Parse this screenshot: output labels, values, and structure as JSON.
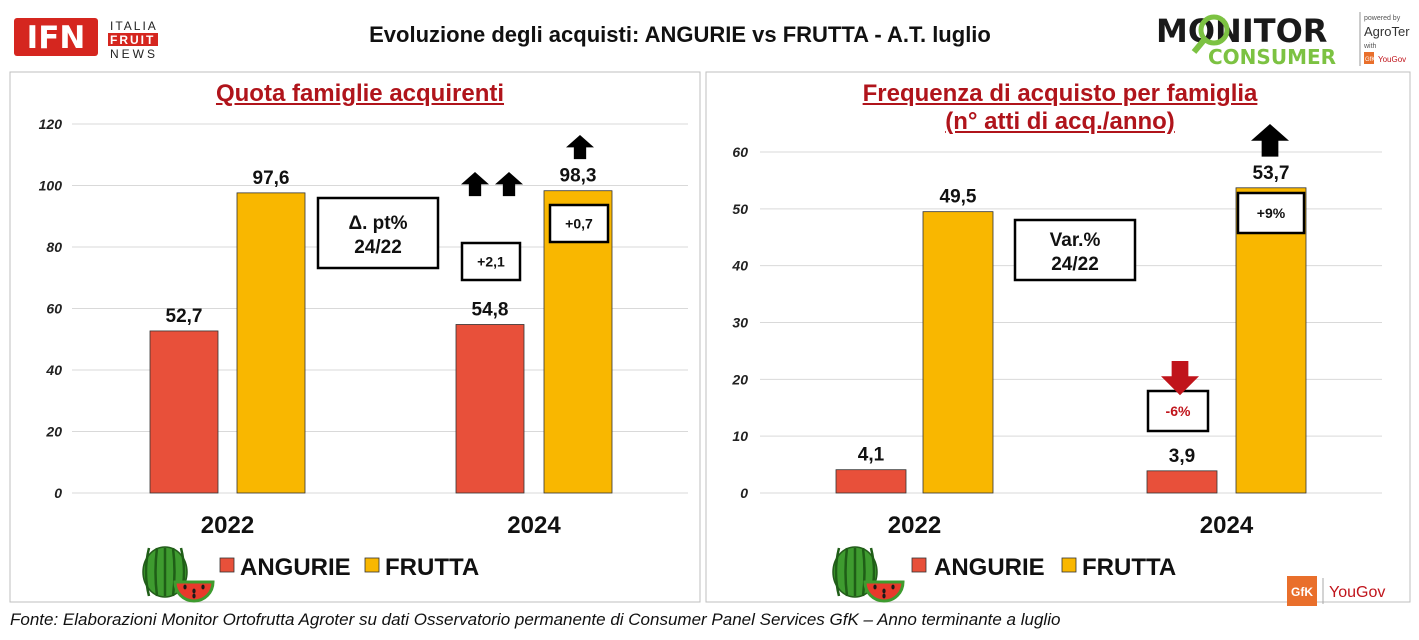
{
  "header": {
    "title": "Evoluzione degli acquisti: ANGURIE vs FRUTTA  - A.T. luglio",
    "logo_left": {
      "main": "IFN",
      "lines": [
        "ITALIA",
        "FRUIT",
        "NEWS"
      ]
    },
    "logo_right": {
      "line1": "MONITOR",
      "line2": "CONSUMER",
      "powered": "powered by",
      "brand": "AgroTer",
      "with": "with",
      "partner": "YouGov",
      "gfk": "GfK"
    }
  },
  "footer": {
    "source": "Fonte: Elaborazioni Monitor Ortofrutta Agroter su dati Osservatorio permanente di Consumer Panel Services GfK  – Anno terminante a luglio",
    "logo_gfk": "GfK",
    "logo_yougov": "YouGov"
  },
  "colors": {
    "angurie": "#e8503a",
    "frutta": "#f9b700",
    "title_red": "#b0141b",
    "down_arrow": "#c0141b",
    "gridline": "#d9d9d9"
  },
  "chart_data": [
    {
      "type": "bar",
      "title": "Quota famiglie acquirenti",
      "categories": [
        "2022",
        "2024"
      ],
      "series": [
        {
          "name": "ANGURIE",
          "values": [
            52.7,
            54.8
          ],
          "labels": [
            "52,7",
            "54,8"
          ]
        },
        {
          "name": "FRUTTA",
          "values": [
            97.6,
            98.3
          ],
          "labels": [
            "97,6",
            "98,3"
          ]
        }
      ],
      "ylim": [
        0,
        120
      ],
      "yticks": [
        0,
        20,
        40,
        60,
        80,
        100,
        120
      ],
      "grid": true,
      "legend": "bottom",
      "legend_icon": "watermelon-icon",
      "annotation_box": {
        "lines": [
          "Δ. pt%",
          "24/22"
        ]
      },
      "changes": [
        {
          "series": "ANGURIE",
          "category": "2024",
          "label": "+2,1",
          "direction": "up"
        },
        {
          "series": "FRUTTA",
          "category": "2024",
          "label": "+0,7",
          "direction": "up"
        }
      ]
    },
    {
      "type": "bar",
      "title": "Frequenza di acquisto per famiglia",
      "subtitle": "(n° atti di acq./anno)",
      "categories": [
        "2022",
        "2024"
      ],
      "series": [
        {
          "name": "ANGURIE",
          "values": [
            4.1,
            3.9
          ],
          "labels": [
            "4,1",
            "3,9"
          ]
        },
        {
          "name": "FRUTTA",
          "values": [
            49.5,
            53.7
          ],
          "labels": [
            "49,5",
            "53,7"
          ]
        }
      ],
      "ylim": [
        0,
        60
      ],
      "yticks": [
        0,
        10,
        20,
        30,
        40,
        50,
        60
      ],
      "grid": true,
      "legend": "bottom",
      "legend_icon": "watermelon-icon",
      "annotation_box": {
        "lines": [
          "Var.%",
          "24/22"
        ]
      },
      "changes": [
        {
          "series": "ANGURIE",
          "category": "2024",
          "label": "-6%",
          "direction": "down"
        },
        {
          "series": "FRUTTA",
          "category": "2024",
          "label": "+9%",
          "direction": "up"
        }
      ]
    }
  ]
}
